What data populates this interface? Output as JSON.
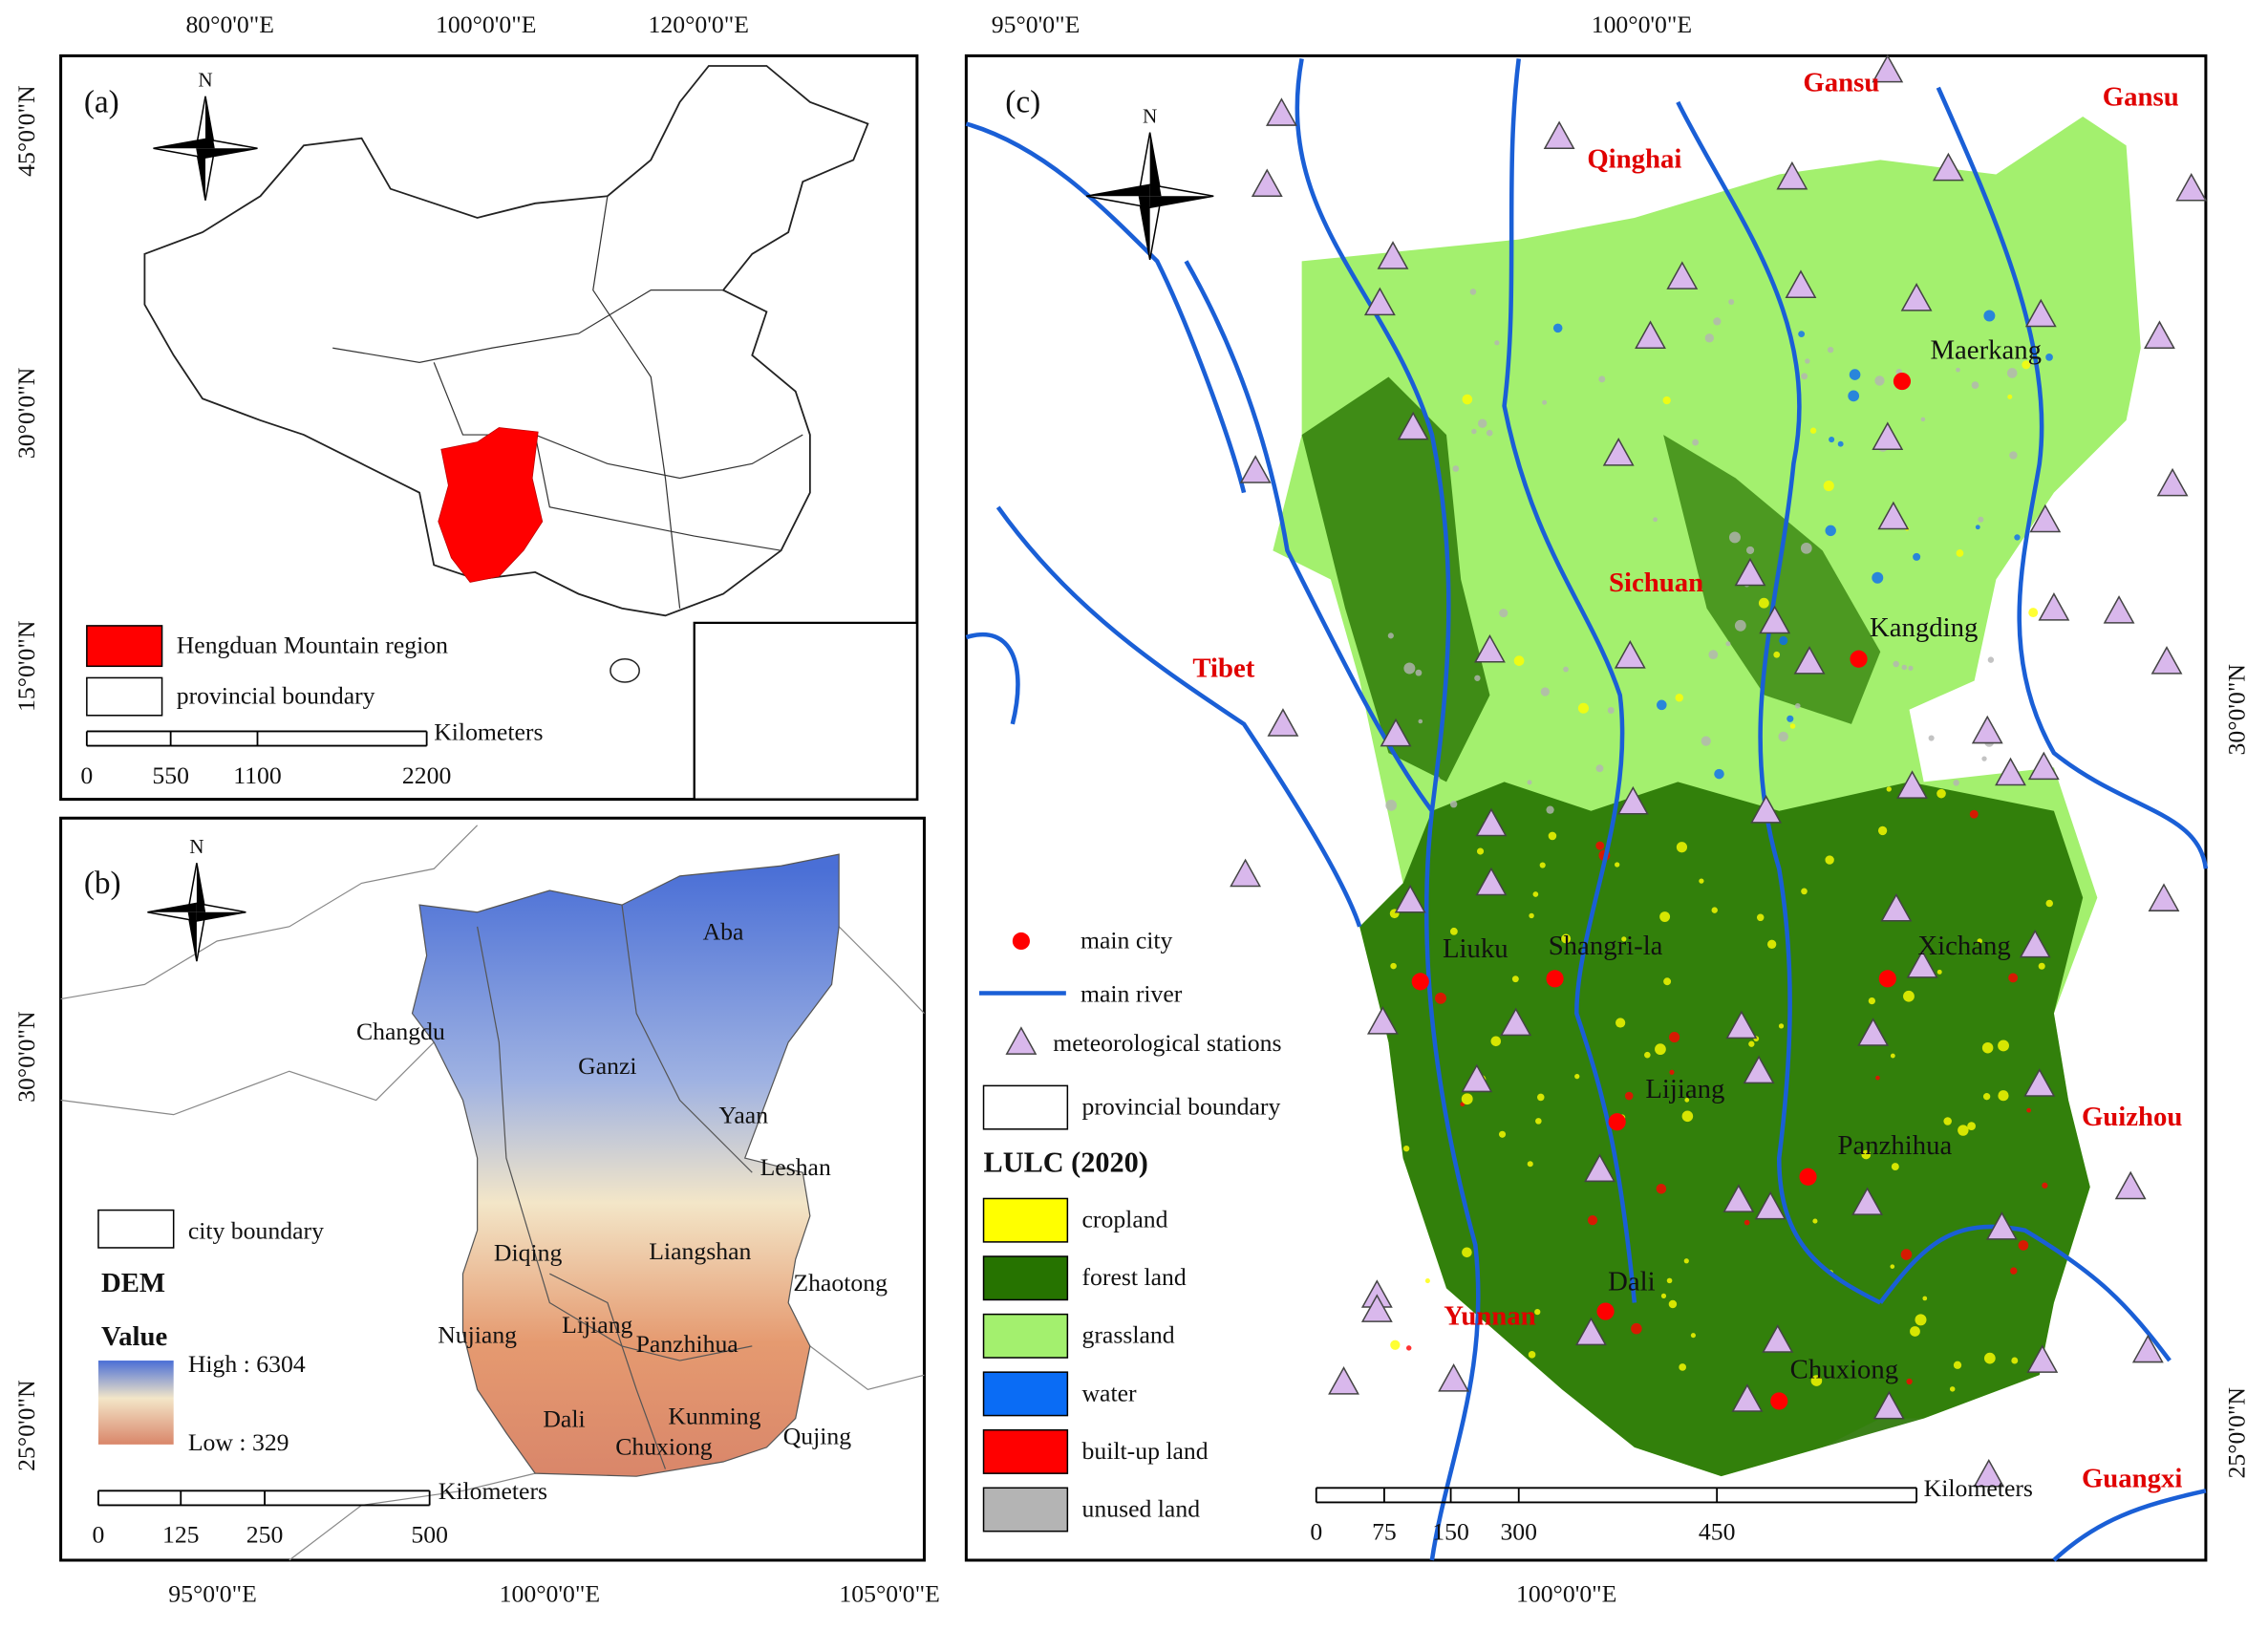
{
  "panel_a": {
    "label": "(a)",
    "north": "N",
    "top_ticks": [
      "80°0'0\"E",
      "100°0'0\"E",
      "120°0'0\"E"
    ],
    "left_ticks": [
      "45°0'0\"N",
      "30°0'0\"N",
      "15°0'0\"N"
    ],
    "legend": [
      {
        "label": "Hengduan Mountain region",
        "color": "#ff0000"
      },
      {
        "label": "provincial boundary"
      }
    ],
    "scale_unit": "Kilometers",
    "scale_labels": [
      "0",
      "550",
      "1100",
      "2200"
    ]
  },
  "panel_b": {
    "label": "(b)",
    "north": "N",
    "bottom_ticks": [
      "95°0'0\"E",
      "100°0'0\"E",
      "105°0'0\"E"
    ],
    "left_ticks": [
      "30°0'0\"N",
      "25°0'0\"N"
    ],
    "places": [
      "Aba",
      "Changdu",
      "Ganzi",
      "Yaan",
      "Leshan",
      "Diqing",
      "Liangshan",
      "Zhaotong",
      "Nujiang",
      "Lijiang",
      "Panzhihua",
      "Dali",
      "Kunming",
      "Chuxiong",
      "Qujing"
    ],
    "legend_city": "city boundary",
    "dem_title": "DEM",
    "value_title": "Value",
    "high": "High : 6304",
    "low": "Low : 329",
    "high_color": "#4a6fd6",
    "low_color": "#d9866a",
    "scale_unit": "Kilometers",
    "scale_labels": [
      "0",
      "125",
      "250",
      "500"
    ]
  },
  "panel_c": {
    "label": "(c)",
    "north": "N",
    "top_ticks": [
      "95°0'0\"E",
      "100°0'0\"E"
    ],
    "bottom_ticks": [
      "100°0'0\"E"
    ],
    "right_ticks": [
      "30°0'0\"N",
      "25°0'0\"N"
    ],
    "provinces": [
      "Gansu",
      "Gansu",
      "Qinghai",
      "Sichuan",
      "Tibet",
      "Guizhou",
      "Yunnan",
      "Guangxi"
    ],
    "province_color": "#e00000",
    "cities": [
      "Maerkang",
      "Kangding",
      "Liuku",
      "Shangri-la",
      "Xichang",
      "Lijiang",
      "Panzhihua",
      "Dali",
      "Chuxiong"
    ],
    "city_color": "#ff0000",
    "river_color": "#1a5fd6",
    "station_color": "#d9b8ec",
    "legend": {
      "main_city": "main city",
      "main_river": "main river",
      "stations": "meteorological stations",
      "boundary": "provincial boundary"
    },
    "lulc_title": "LULC (2020)",
    "lulc": [
      {
        "label": "cropland",
        "color": "#ffff00"
      },
      {
        "label": "forest land",
        "color": "#267300"
      },
      {
        "label": "grassland",
        "color": "#a3f06e"
      },
      {
        "label": "water",
        "color": "#0a6cf5"
      },
      {
        "label": "built-up land",
        "color": "#ff0000"
      },
      {
        "label": "unused land",
        "color": "#b4b4b4"
      }
    ],
    "scale_unit": "Kilometers",
    "scale_labels": [
      "0",
      "75",
      "150",
      "300",
      "450"
    ]
  }
}
